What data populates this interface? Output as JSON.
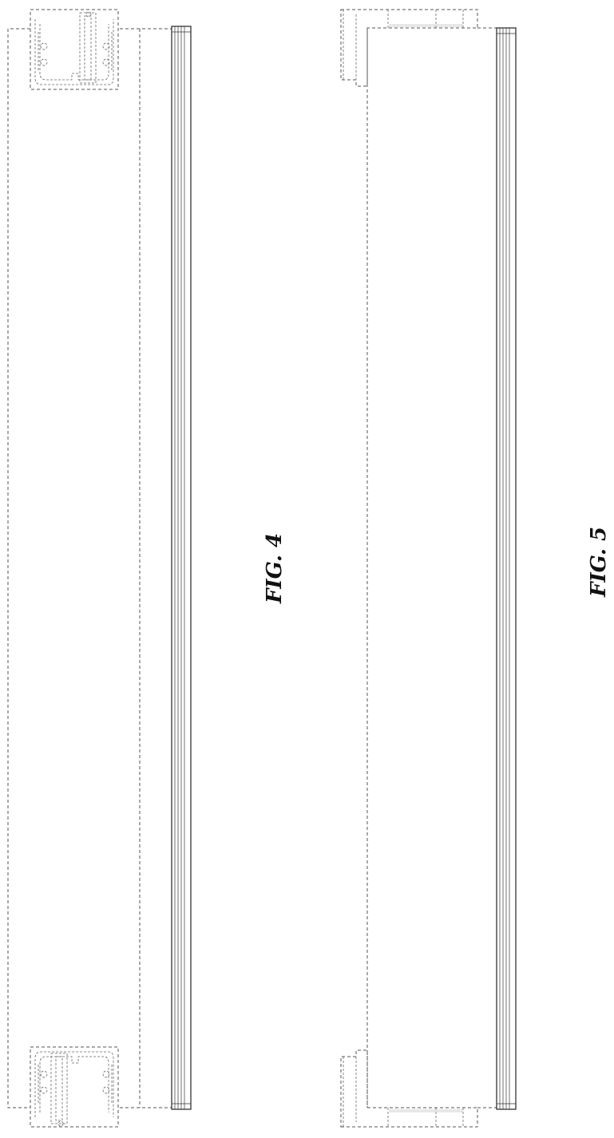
{
  "figures": [
    {
      "id": "fig4",
      "label": "FIG. 4"
    },
    {
      "id": "fig5",
      "label": "FIG. 5"
    }
  ],
  "colors": {
    "line": "#222222",
    "hidden_line": "#555555",
    "background": "#ffffff"
  }
}
